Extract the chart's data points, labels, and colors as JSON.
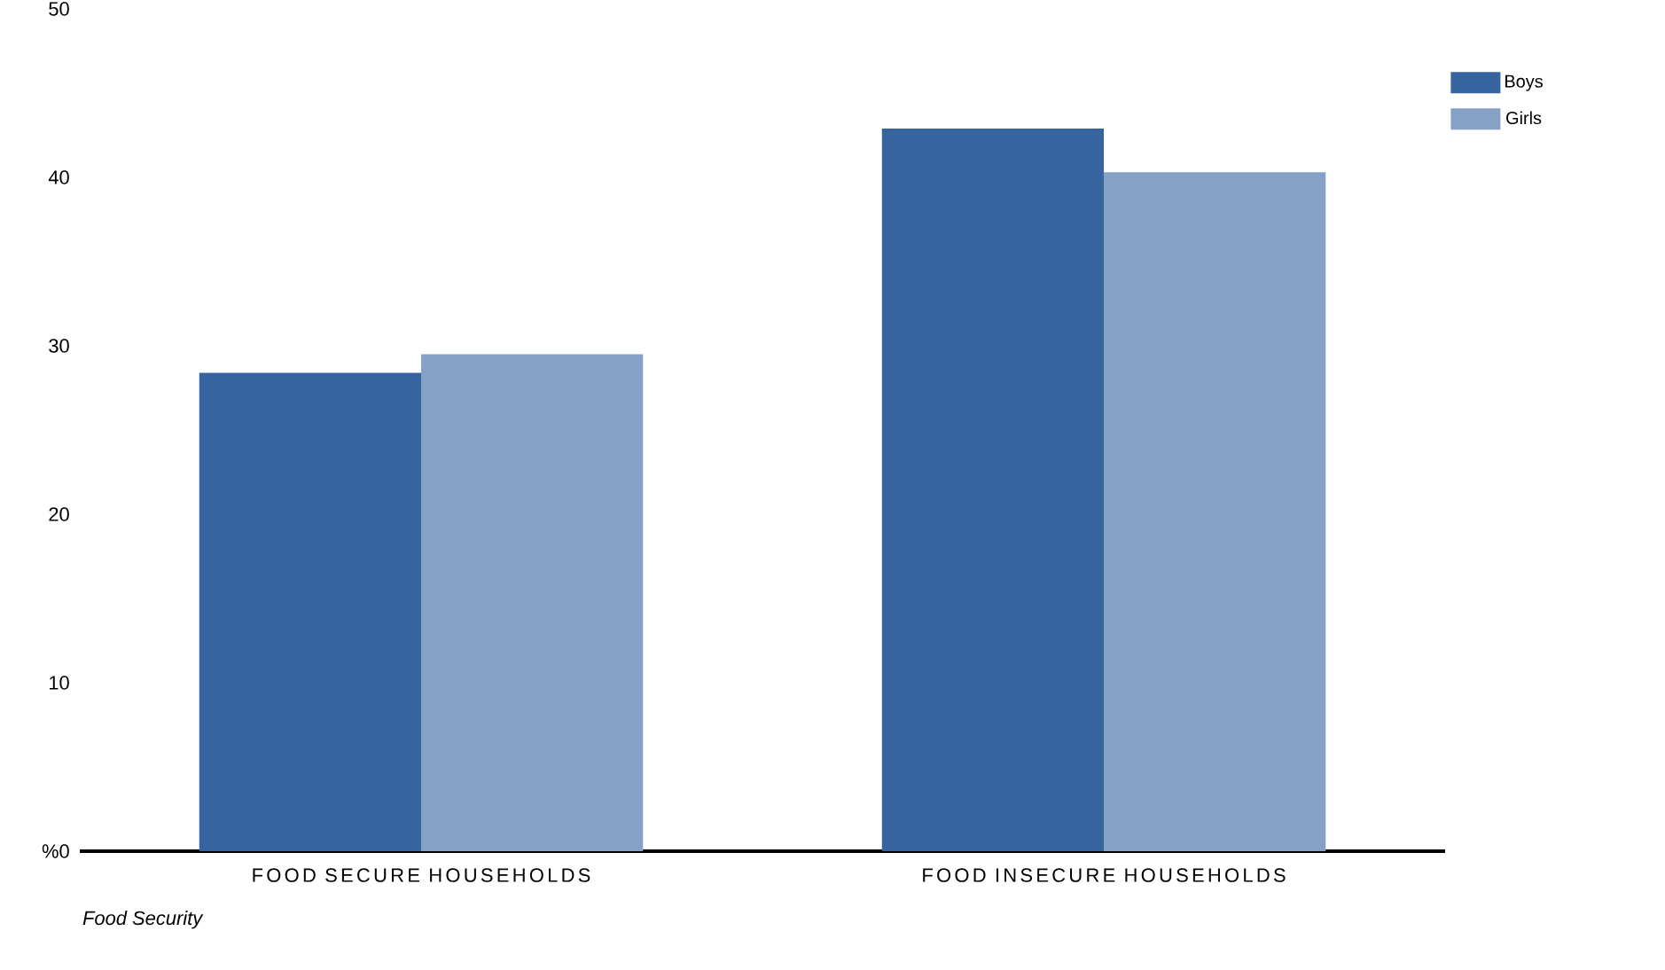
{
  "chart_data": {
    "type": "bar",
    "categories": [
      "FOOD SECURE HOUSEHOLDS",
      "FOOD INSECURE HOUSEHOLDS"
    ],
    "series": [
      {
        "name": "Boys",
        "color": "#35649e",
        "values": [
          28.4,
          42.9
        ]
      },
      {
        "name": "Girls",
        "color": "#86a1c6",
        "values": [
          29.5,
          40.3
        ]
      }
    ],
    "xlabel": "Food Security",
    "ylim": [
      0,
      50
    ],
    "yticks": [
      {
        "value": 0,
        "label": "%0"
      },
      10,
      20,
      30,
      40,
      50
    ],
    "legend": "right",
    "grid": false
  }
}
